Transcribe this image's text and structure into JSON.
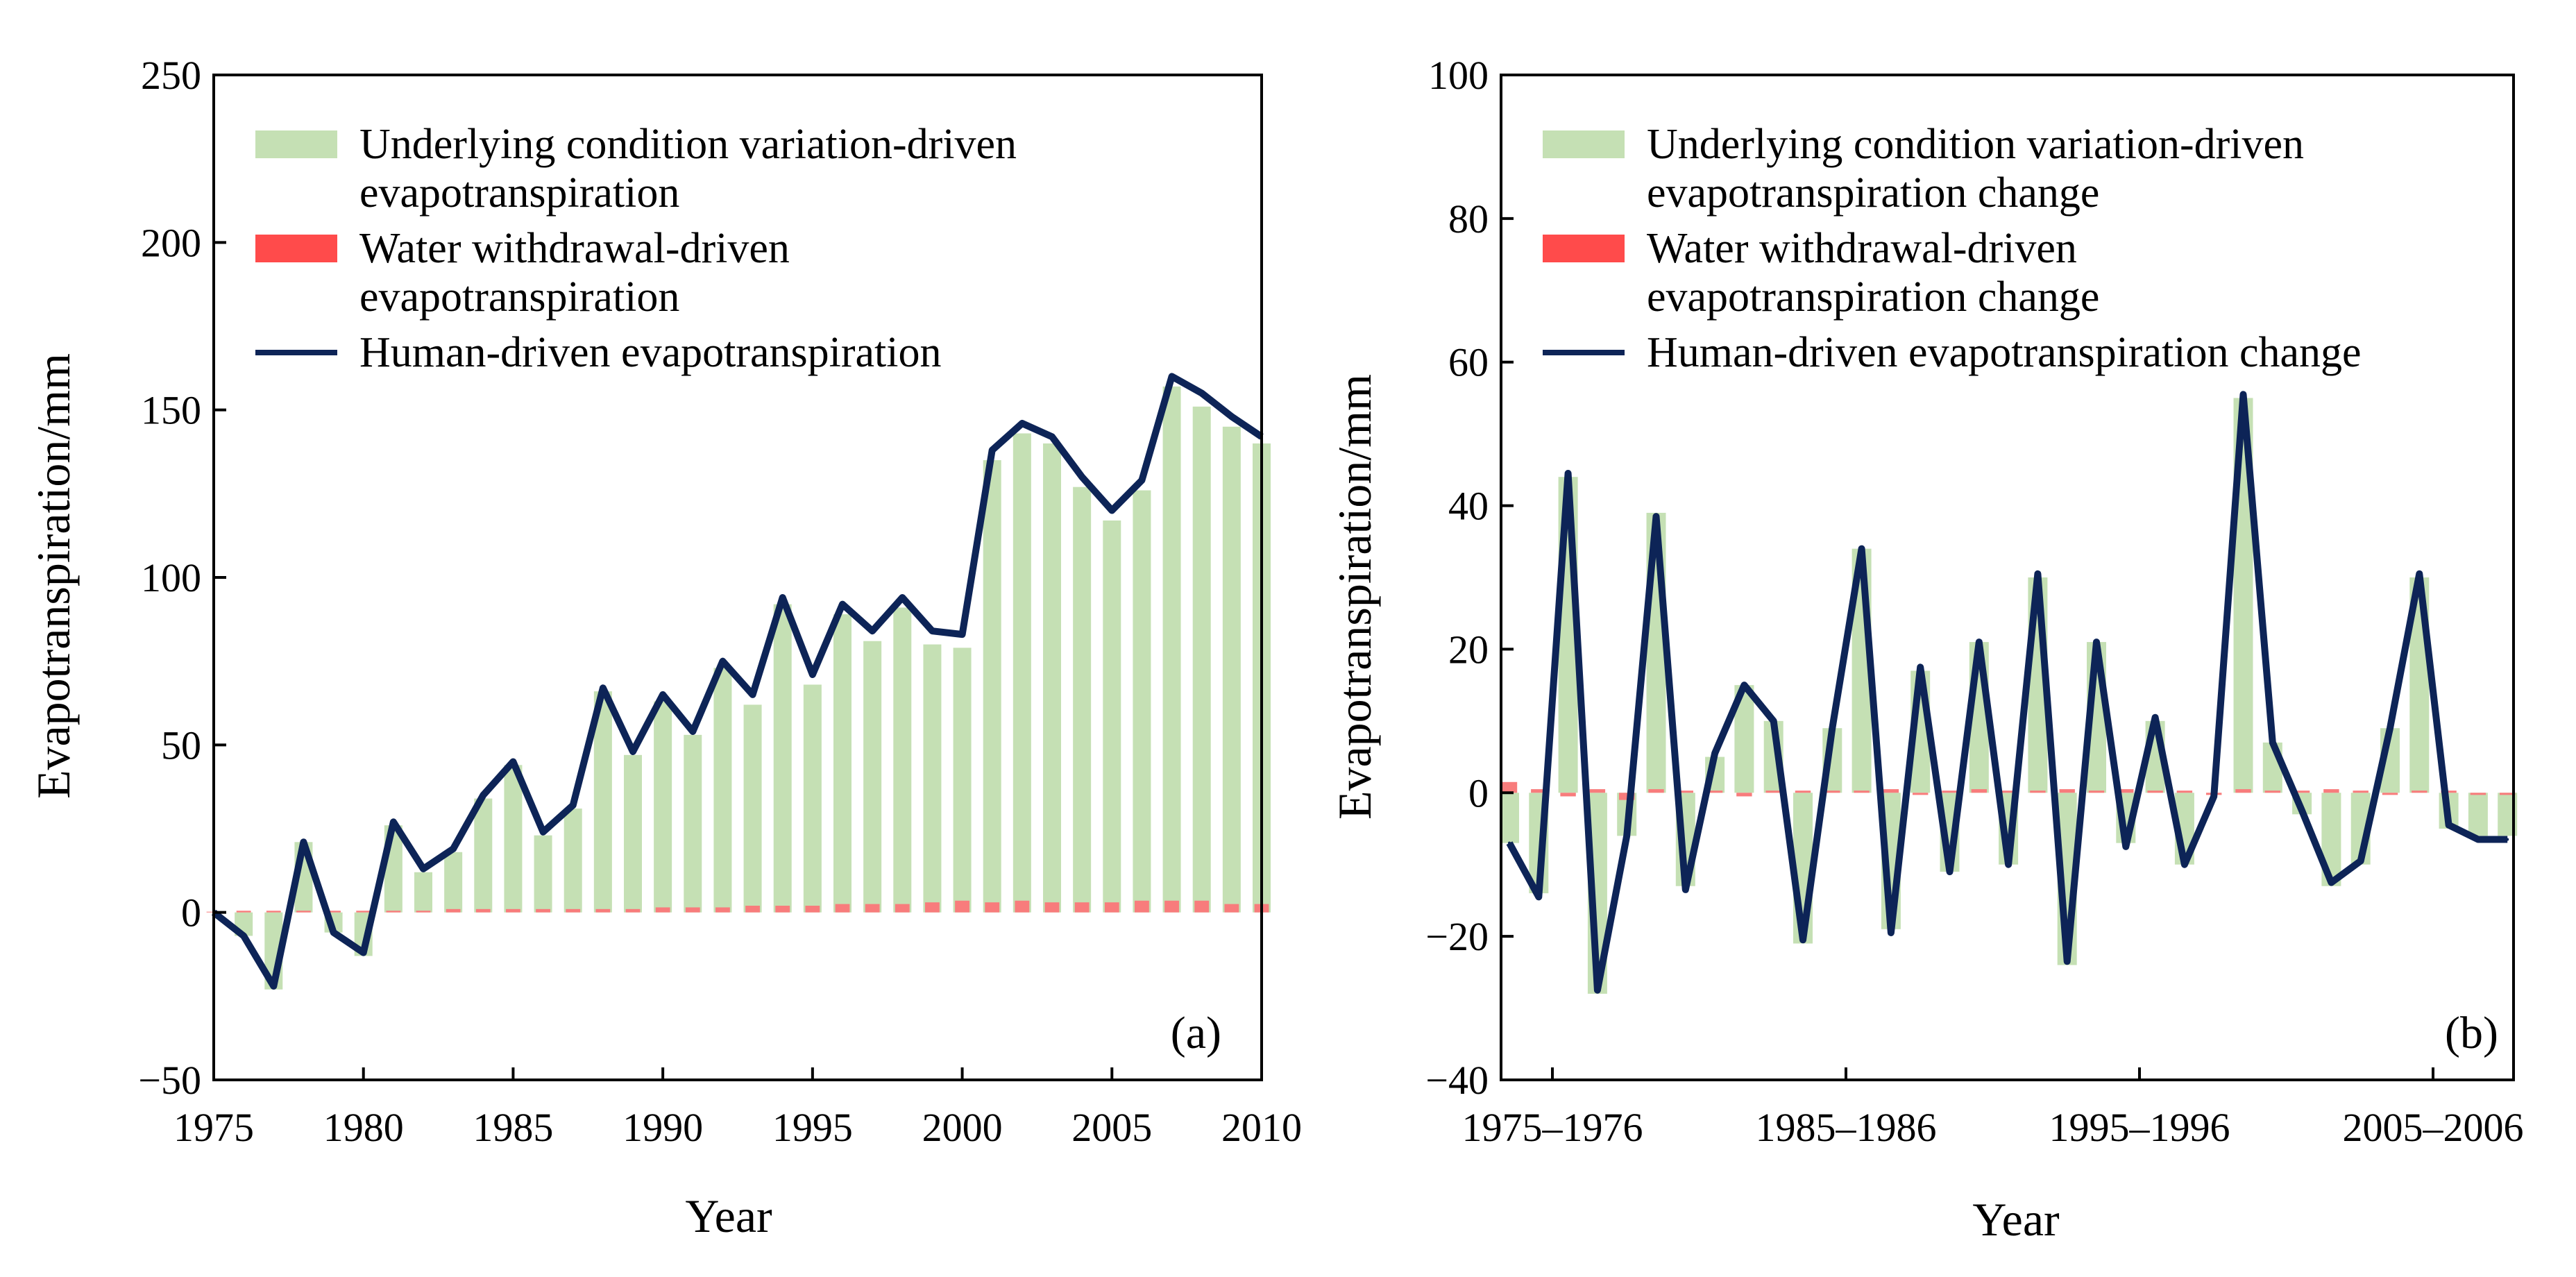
{
  "colors": {
    "underlying": "#c5e0b4",
    "water": "#ff4b4b",
    "water_bar": "#f87c7c",
    "human": "#0d2457",
    "axis": "#000000"
  },
  "chart_data": [
    {
      "type": "bar",
      "panel_label": "(a)",
      "xlabel": "Year",
      "ylabel": "Evapotranspiration/mm",
      "ylim": [
        -50,
        250
      ],
      "yticks": [
        "250",
        "200",
        "150",
        "100",
        "50",
        "0",
        "−50"
      ],
      "ytick_values": [
        250,
        200,
        150,
        100,
        50,
        0,
        -50
      ],
      "xticks": [
        "1975",
        "1980",
        "1985",
        "1990",
        "1995",
        "2000",
        "2005",
        "2010"
      ],
      "xtick_values": [
        1975,
        1980,
        1985,
        1990,
        1995,
        2000,
        2005,
        2010
      ],
      "x": [
        1975,
        1976,
        1977,
        1978,
        1979,
        1980,
        1981,
        1982,
        1983,
        1984,
        1985,
        1986,
        1987,
        1988,
        1989,
        1990,
        1991,
        1992,
        1993,
        1994,
        1995,
        1996,
        1997,
        1998,
        1999,
        2000,
        2001,
        2002,
        2003,
        2004,
        2005,
        2006,
        2007,
        2008,
        2009,
        2010
      ],
      "legend": [
        {
          "key": "underlying",
          "line1": "Underlying condition variation-driven",
          "line2": "evapotranspiration"
        },
        {
          "key": "water",
          "line1": "Water withdrawal-driven",
          "line2": "evapotranspiration"
        },
        {
          "key": "human",
          "line1": "Human-driven evapotranspiration",
          "line2": ""
        }
      ],
      "series": [
        {
          "name": "Underlying condition variation-driven evapotranspiration",
          "kind": "bar",
          "values": [
            0,
            -7,
            -23,
            21,
            -6,
            -13,
            26,
            12,
            18,
            34,
            44,
            23,
            31,
            66,
            47,
            63,
            53,
            73,
            62,
            92,
            68,
            89,
            81,
            91,
            80,
            79,
            135,
            143,
            140,
            127,
            117,
            126,
            157,
            151,
            145,
            140
          ]
        },
        {
          "name": "Water withdrawal-driven evapotranspiration",
          "kind": "bar",
          "values": [
            0,
            0.5,
            0.5,
            0.5,
            0.5,
            0.5,
            0.5,
            0.5,
            1,
            1,
            1,
            1,
            1,
            1,
            1,
            1.5,
            1.5,
            1.5,
            2,
            2,
            2,
            2.5,
            2.5,
            2.5,
            3,
            3.5,
            3,
            3.5,
            3,
            3,
            3,
            3.5,
            3.5,
            3.5,
            2.5,
            2.5
          ]
        },
        {
          "name": "Human-driven evapotranspiration",
          "kind": "line",
          "values": [
            0,
            -7,
            -22,
            21,
            -6,
            -12,
            27,
            13,
            19,
            35,
            45,
            24,
            32,
            67,
            48,
            65,
            54,
            75,
            65,
            94,
            71,
            92,
            84,
            94,
            84,
            83,
            138,
            146,
            142,
            130,
            120,
            129,
            160,
            155,
            148,
            142
          ]
        }
      ]
    },
    {
      "type": "bar",
      "panel_label": "(b)",
      "xlabel": "Year",
      "ylabel": "Evapotranspiration/mm",
      "ylim": [
        -40,
        100
      ],
      "yticks": [
        "100",
        "80",
        "60",
        "40",
        "20",
        "0",
        "−20",
        "−40"
      ],
      "ytick_values": [
        100,
        80,
        60,
        40,
        20,
        0,
        -20,
        -40
      ],
      "xticks": [
        "1975–1976",
        "1985–1986",
        "1995–1996",
        "2005–2006"
      ],
      "xtick_index": [
        0,
        10,
        20,
        30
      ],
      "categories": [
        "1975–1976",
        "1976–1977",
        "1977–1978",
        "1978–1979",
        "1979–1980",
        "1980–1981",
        "1981–1982",
        "1982–1983",
        "1983–1984",
        "1984–1985",
        "1985–1986",
        "1986–1987",
        "1987–1988",
        "1988–1989",
        "1989–1990",
        "1990–1991",
        "1991–1992",
        "1992–1993",
        "1993–1994",
        "1994–1995",
        "1995–1996",
        "1996–1997",
        "1997–1998",
        "1998–1999",
        "1999–2000",
        "2000–2001",
        "2001–2002",
        "2002–2003",
        "2003–2004",
        "2004–2005",
        "2005–2006",
        "2006–2007",
        "2007–2008",
        "2008–2009",
        "2009–2010"
      ],
      "legend": [
        {
          "key": "underlying",
          "line1": "Underlying condition variation-driven",
          "line2": "evapotranspiration change"
        },
        {
          "key": "water",
          "line1": "Water withdrawal-driven",
          "line2": "evapotranspiration change"
        },
        {
          "key": "human",
          "line1": "Human-driven evapotranspiration change",
          "line2": ""
        }
      ],
      "series": [
        {
          "name": "Underlying condition variation-driven evapotranspiration change",
          "kind": "bar",
          "values": [
            -7,
            -14,
            44,
            -28,
            -6,
            39,
            -13,
            5,
            15,
            10,
            -21,
            9,
            34,
            -19,
            17,
            -11,
            21,
            -10,
            30,
            -24,
            21,
            -7,
            10,
            -10,
            0,
            55,
            7,
            -3,
            -13,
            -10,
            9,
            30,
            -5,
            -6,
            -6
          ]
        },
        {
          "name": "Water withdrawal-driven evapotranspiration change",
          "kind": "bar",
          "values": [
            1.5,
            0.5,
            -0.5,
            0.5,
            -1,
            0.5,
            0.3,
            0.3,
            -0.5,
            0.3,
            0.3,
            0.3,
            0.3,
            0.5,
            -0.3,
            0.3,
            0.5,
            0.3,
            0.3,
            0.5,
            0.3,
            0.5,
            0.3,
            0.3,
            -0.3,
            0.5,
            0.3,
            0.3,
            0.5,
            0.3,
            -0.3,
            0.3,
            0.3,
            -0.3,
            -0.3
          ]
        },
        {
          "name": "Human-driven evapotranspiration change",
          "kind": "line",
          "values": [
            -7,
            -14.5,
            44.5,
            -27.5,
            -6,
            38.5,
            -13.5,
            5.5,
            15,
            10,
            -20.5,
            9,
            34,
            -19.5,
            17.5,
            -11,
            21,
            -10,
            30.5,
            -23.5,
            21,
            -7.5,
            10.5,
            -10,
            -0.5,
            55.5,
            7,
            -2.5,
            -12.5,
            -9.5,
            9,
            30.5,
            -4.5,
            -6.5,
            -6.5
          ]
        }
      ]
    }
  ]
}
